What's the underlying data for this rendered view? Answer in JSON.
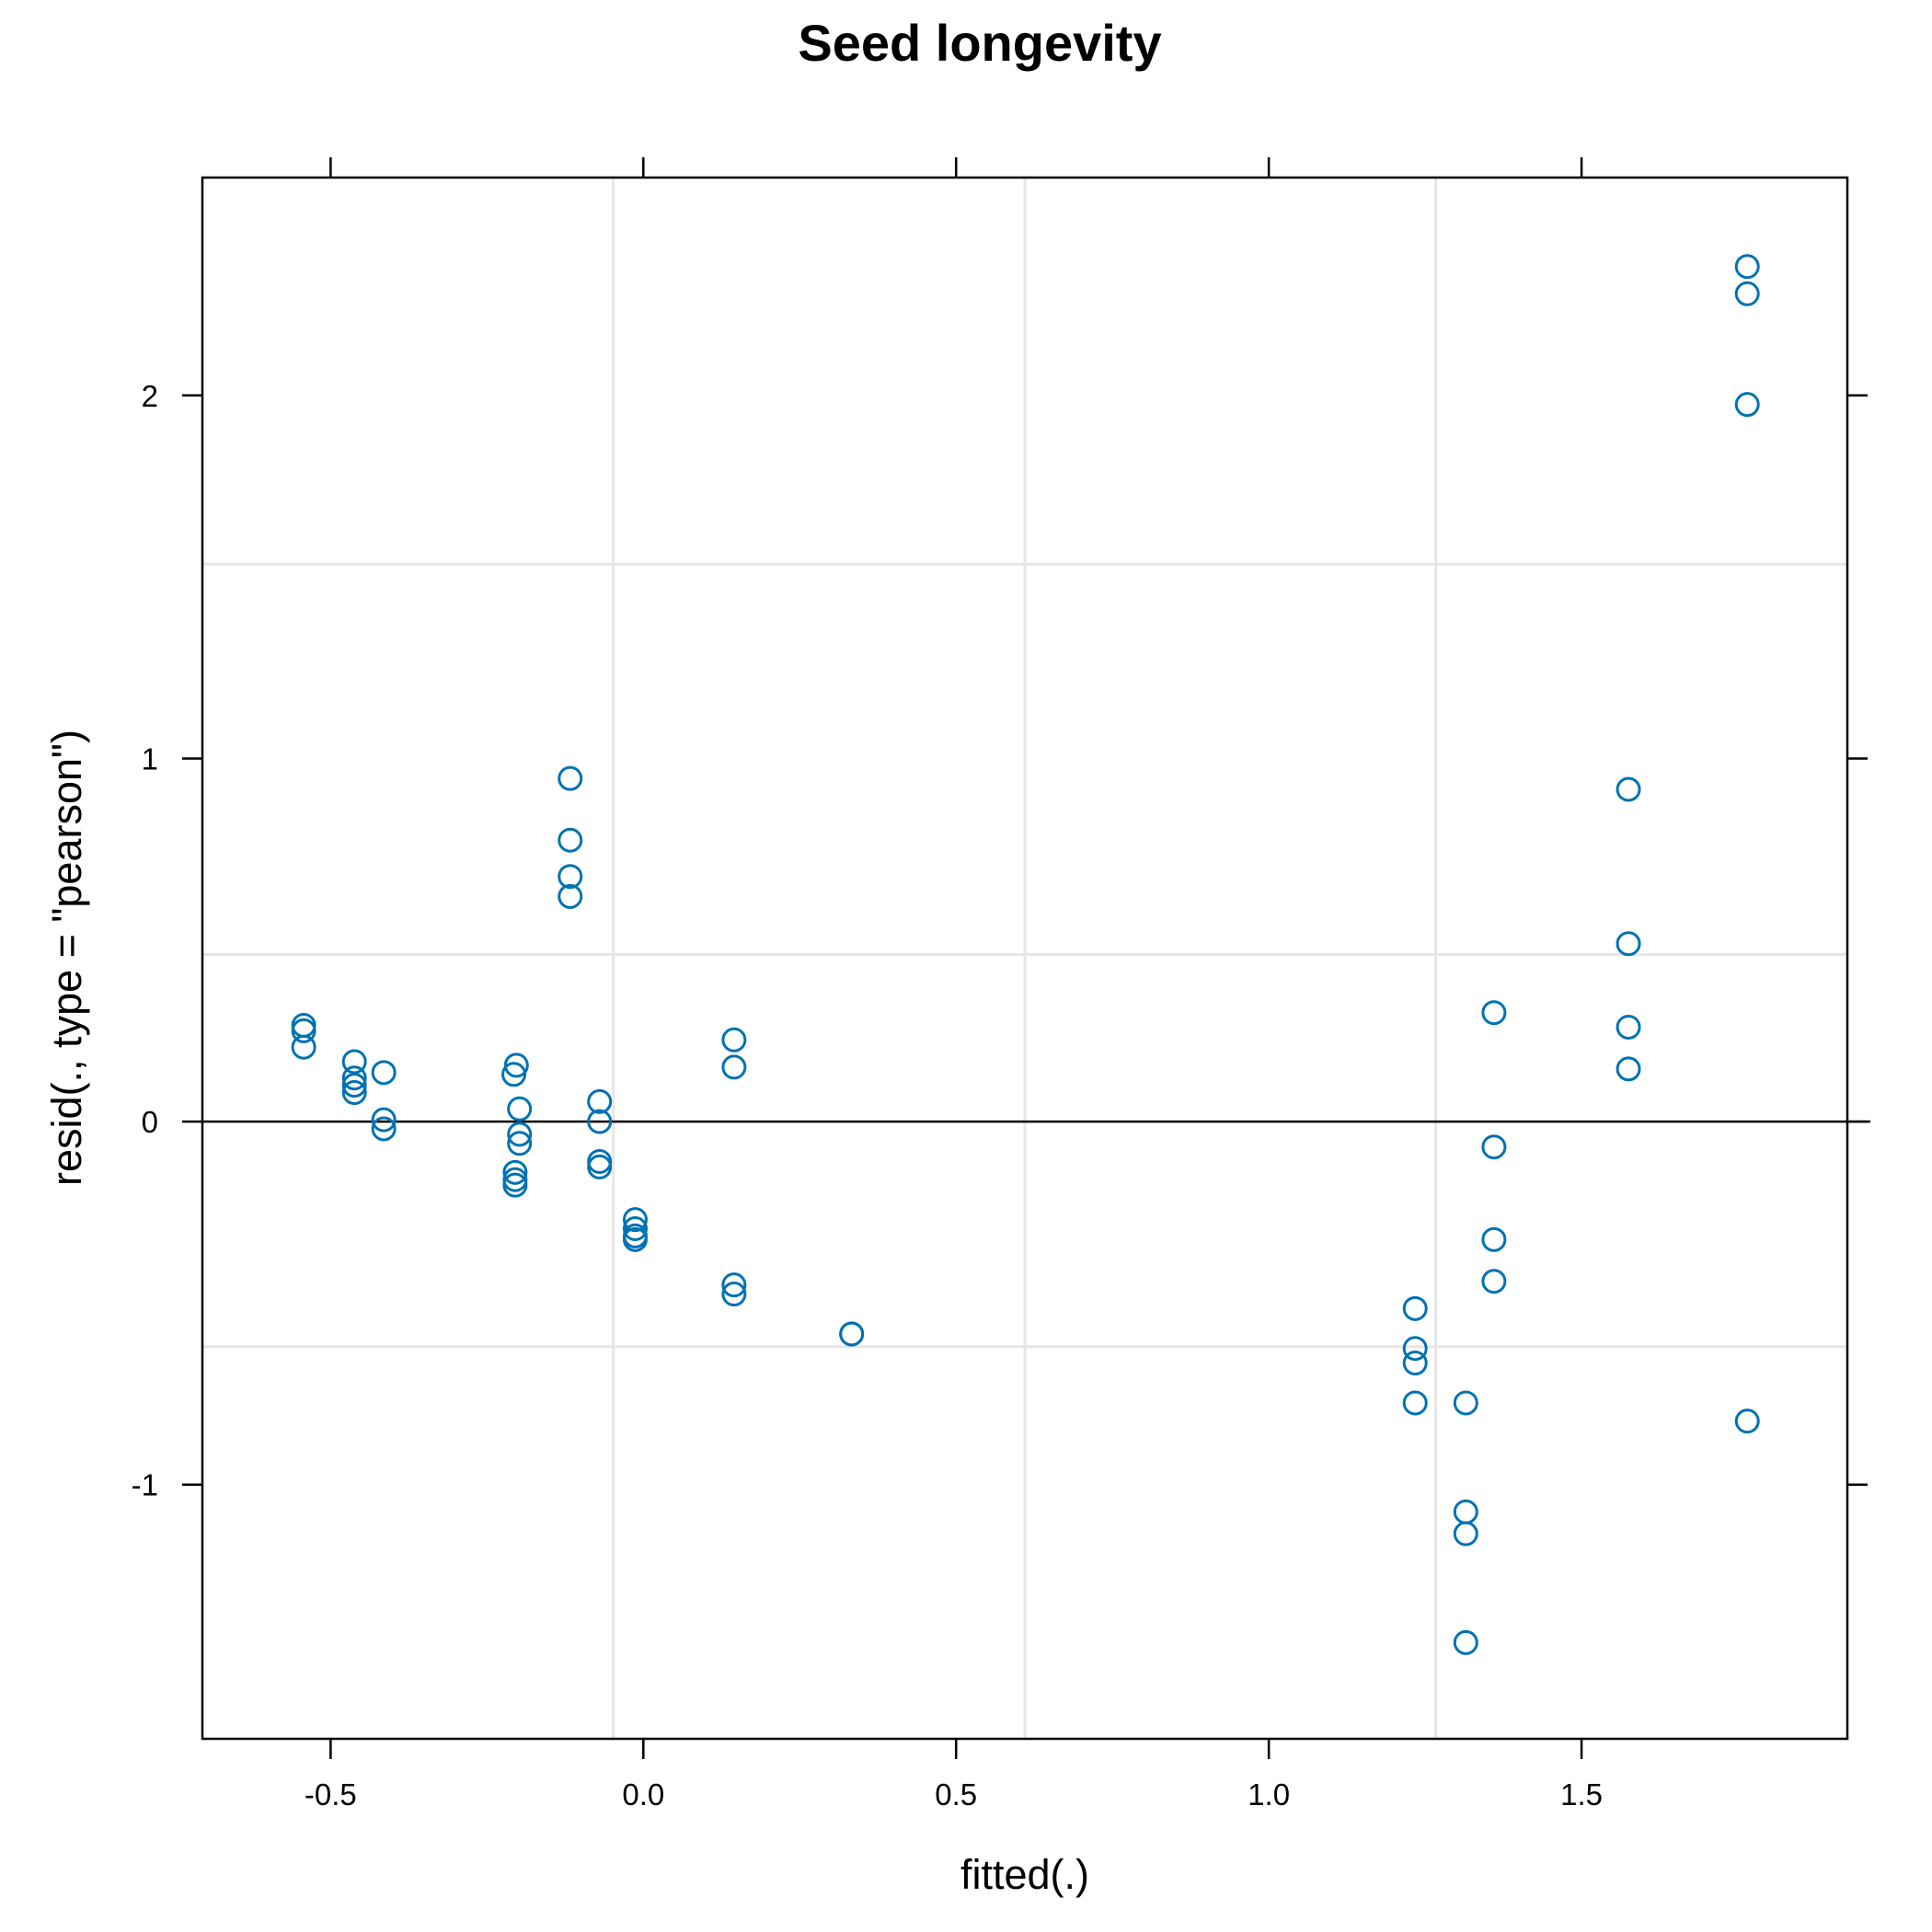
{
  "chart_data": {
    "type": "scatter",
    "title": "Seed longevity",
    "xlabel": "fitted(.)",
    "ylabel": "resid(., type = \"pearson\")",
    "xlim": [
      -0.705,
      1.925
    ],
    "ylim": [
      -1.7,
      2.6
    ],
    "xticks": [
      -0.5,
      0.0,
      0.5,
      1.0,
      1.5
    ],
    "xtick_labels": [
      "-0.5",
      "0.0",
      "0.5",
      "1.0",
      "1.5"
    ],
    "yticks": [
      -1,
      0,
      1,
      2
    ],
    "ytick_labels": [
      "-1",
      "0",
      "1",
      "2"
    ],
    "grid_x": [
      -0.048,
      0.61,
      1.267
    ],
    "grid_y": [
      -0.62,
      0.46,
      1.535
    ],
    "reference_line_y": 0,
    "point_color": "#0072b2",
    "points": [
      {
        "x": -0.543,
        "y": 0.265
      },
      {
        "x": -0.543,
        "y": 0.25
      },
      {
        "x": -0.543,
        "y": 0.205
      },
      {
        "x": -0.462,
        "y": 0.165
      },
      {
        "x": -0.462,
        "y": 0.12
      },
      {
        "x": -0.462,
        "y": 0.1
      },
      {
        "x": -0.462,
        "y": 0.08
      },
      {
        "x": -0.415,
        "y": 0.135
      },
      {
        "x": -0.415,
        "y": 0.005
      },
      {
        "x": -0.415,
        "y": -0.02
      },
      {
        "x": -0.203,
        "y": 0.155
      },
      {
        "x": -0.207,
        "y": 0.13
      },
      {
        "x": -0.198,
        "y": 0.035
      },
      {
        "x": -0.198,
        "y": -0.035
      },
      {
        "x": -0.198,
        "y": -0.06
      },
      {
        "x": -0.205,
        "y": -0.14
      },
      {
        "x": -0.205,
        "y": -0.16
      },
      {
        "x": -0.205,
        "y": -0.175
      },
      {
        "x": -0.117,
        "y": 0.945
      },
      {
        "x": -0.117,
        "y": 0.775
      },
      {
        "x": -0.117,
        "y": 0.675
      },
      {
        "x": -0.117,
        "y": 0.62
      },
      {
        "x": -0.07,
        "y": 0.055
      },
      {
        "x": -0.07,
        "y": 0.0
      },
      {
        "x": -0.07,
        "y": -0.11
      },
      {
        "x": -0.07,
        "y": -0.125
      },
      {
        "x": -0.013,
        "y": -0.27
      },
      {
        "x": -0.013,
        "y": -0.295
      },
      {
        "x": -0.013,
        "y": -0.315
      },
      {
        "x": -0.013,
        "y": -0.325
      },
      {
        "x": 0.145,
        "y": 0.225
      },
      {
        "x": 0.145,
        "y": 0.15
      },
      {
        "x": 0.145,
        "y": -0.45
      },
      {
        "x": 0.145,
        "y": -0.475
      },
      {
        "x": 0.333,
        "y": -0.585
      },
      {
        "x": 0.333,
        "y": -0.585
      },
      {
        "x": 1.234,
        "y": -0.515
      },
      {
        "x": 1.234,
        "y": -0.625
      },
      {
        "x": 1.234,
        "y": -0.665
      },
      {
        "x": 1.234,
        "y": -0.775
      },
      {
        "x": 1.315,
        "y": -0.775
      },
      {
        "x": 1.315,
        "y": -1.075
      },
      {
        "x": 1.315,
        "y": -1.135
      },
      {
        "x": 1.315,
        "y": -1.435
      },
      {
        "x": 1.36,
        "y": 0.3
      },
      {
        "x": 1.36,
        "y": -0.07
      },
      {
        "x": 1.36,
        "y": -0.325
      },
      {
        "x": 1.36,
        "y": -0.44
      },
      {
        "x": 1.575,
        "y": 0.915
      },
      {
        "x": 1.575,
        "y": 0.49
      },
      {
        "x": 1.575,
        "y": 0.26
      },
      {
        "x": 1.575,
        "y": 0.145
      },
      {
        "x": 1.765,
        "y": 2.355
      },
      {
        "x": 1.765,
        "y": 2.28
      },
      {
        "x": 1.765,
        "y": 1.975
      },
      {
        "x": 1.765,
        "y": -0.825
      }
    ]
  }
}
